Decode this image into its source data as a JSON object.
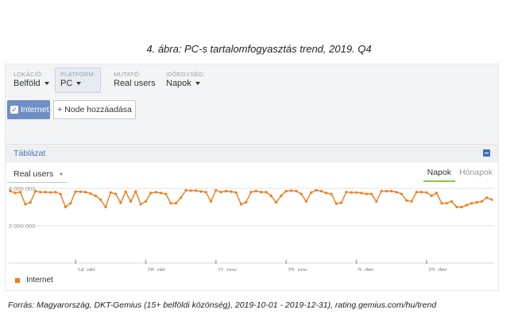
{
  "caption": "4. ábra: PC-s tartalomfogyasztás trend, 2019. Q4",
  "filters": [
    {
      "label": "LOKÁCIÓ:",
      "value": "Belföld",
      "dropdown": true,
      "active": false
    },
    {
      "label": "PLATFORM:",
      "value": "PC",
      "dropdown": true,
      "active": true
    },
    {
      "label": "MUTATÓ:",
      "value": "Real users",
      "dropdown": false,
      "active": false
    },
    {
      "label": "IDŐEGYSÉG:",
      "value": "Napok",
      "dropdown": true,
      "active": false
    }
  ],
  "buttons": {
    "internet": "Internet",
    "add_node": "+ Node hozzáadása"
  },
  "table_label": "Táblázat",
  "metric_select": "Real users",
  "tabs": {
    "days": "Napok",
    "months": "Hónapok"
  },
  "legend": "Internet",
  "footer": "Forrás: Magyarország, DKT-Gemius (15+ belföldi közönség), 2019-10-01 - 2019-12-31), rating.gemius.com/hu/trend",
  "colors": {
    "series": "#f07c1b",
    "accent": "#6f8fc4",
    "tab_underline": "#8cc63f"
  },
  "chart_data": {
    "type": "line",
    "series": [
      {
        "name": "Internet",
        "values": [
          3850000,
          3750000,
          3800000,
          3150000,
          3250000,
          3850000,
          3800000,
          3800000,
          3780000,
          3800000,
          3700000,
          3000000,
          3200000,
          3830000,
          3820000,
          3800000,
          3720000,
          3600000,
          3400000,
          3000000,
          3780000,
          3700000,
          3230000,
          3820000,
          3300000,
          3830000,
          3150000,
          3300000,
          3750000,
          3800000,
          3750000,
          3700000,
          3200000,
          3200000,
          3500000,
          3900000,
          3880000,
          3880000,
          3830000,
          3800000,
          3300000,
          3900000,
          3800000,
          3850000,
          3830000,
          3780000,
          3150000,
          3250000,
          3800000,
          3850000,
          3800000,
          3800000,
          3600000,
          3250000,
          3600000,
          3850000,
          3880000,
          3850000,
          3700000,
          3300000,
          3780000,
          3900000,
          3850000,
          3750000,
          3700000,
          3180000,
          3230000,
          3800000,
          3780000,
          3780000,
          3750000,
          3700000,
          3700000,
          3300000,
          3850000,
          3850000,
          3850000,
          3800000,
          3700000,
          3350000,
          3300000,
          3800000,
          3800000,
          3780000,
          3600000,
          3750000,
          3200000,
          3200000,
          3300000,
          3000000,
          3000000,
          3100000,
          3200000,
          3250000,
          3300000,
          3500000,
          3400000
        ]
      }
    ],
    "x_ticks": [
      "14. okt",
      "28. okt",
      "11. nov",
      "25. nov",
      "9. dec",
      "23. dec"
    ],
    "x_tick_days": [
      13,
      27,
      41,
      55,
      69,
      83
    ],
    "y_ticks": [
      2000000,
      4000000
    ],
    "y_tick_labels": [
      "2 000 000",
      "4 000 000"
    ],
    "ylim": [
      0,
      4000000
    ],
    "grid": true,
    "legend_position": "bottom-left"
  }
}
